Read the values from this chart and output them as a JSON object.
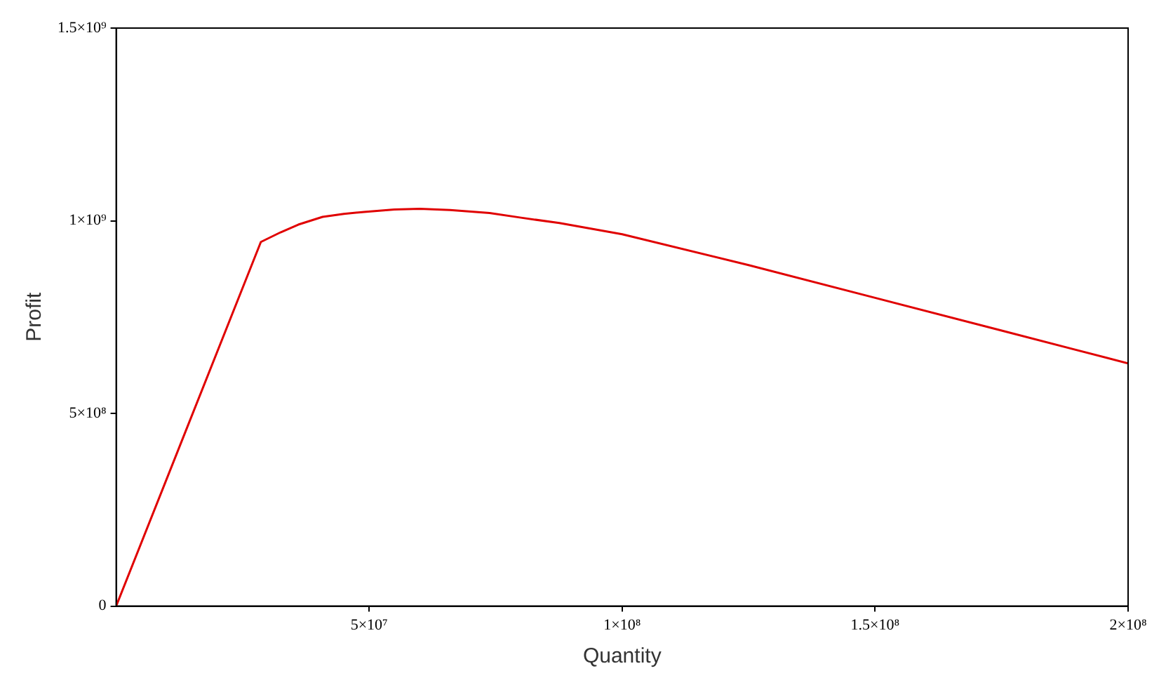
{
  "chart_data": {
    "type": "line",
    "xlabel": "Quantity",
    "ylabel": "Profit",
    "x": [
      0,
      28600000.0,
      32500000.0,
      36000000.0,
      40800000.0,
      45000000.0,
      49000000.0,
      55000000.0,
      60000000.0,
      66000000.0,
      73800000.0,
      80000000.0,
      87600000.0,
      100000000.0,
      125000000.0,
      150000000.0,
      175000000.0,
      200000000.0
    ],
    "series": [
      {
        "color": "#e00000",
        "values": [
          0,
          945000000.0,
          970000000.0,
          990000000.0,
          1010000000.0,
          1018000000.0,
          1023000000.0,
          1029000000.0,
          1031000000.0,
          1028000000.0,
          1020000000.0,
          1008000000.0,
          994000000.0,
          965000000.0,
          885000000.0,
          800000000.0,
          715000000.0,
          630000000.0
        ]
      }
    ],
    "xlim": [
      0,
      200000000.0
    ],
    "ylim": [
      0,
      1500000000.0
    ],
    "xticks": [
      {
        "value": 50000000.0,
        "label": "5×10⁷"
      },
      {
        "value": 100000000.0,
        "label": "1×10⁸"
      },
      {
        "value": 150000000.0,
        "label": "1.5×10⁸"
      },
      {
        "value": 200000000.0,
        "label": "2×10⁸"
      }
    ],
    "yticks": [
      0,
      {
        "value": 500000000.0,
        "label": "5×10⁸"
      },
      {
        "value": 1000000000.0,
        "label": "1×10⁹"
      },
      {
        "value": 1500000000.0,
        "label": "1.5×10⁹"
      }
    ],
    "grid": false,
    "legend": false,
    "marker": "none",
    "line_style": "solid"
  }
}
